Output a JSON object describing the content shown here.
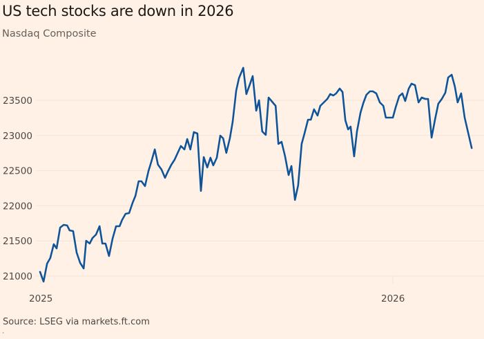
{
  "header": {
    "title": "US tech stocks are down in 2026",
    "subtitle": "Nasdaq Composite"
  },
  "footer": {
    "source": "Source: LSEG via markets.ft.com"
  },
  "colors": {
    "background": "#fff1e5",
    "line": "#0f5499",
    "gridline": "#f6e4d6",
    "text": "#4d4845"
  },
  "chart_data": {
    "type": "line",
    "title": "US tech stocks are down in 2026",
    "subtitle": "Nasdaq Composite",
    "xlabel": "",
    "ylabel": "",
    "x_unit": "decimal year",
    "xlim": [
      2025.0,
      2026.2
    ],
    "ylim": [
      20800,
      24100
    ],
    "yticks": [
      21000,
      21500,
      22000,
      22500,
      23000,
      23500
    ],
    "ytick_labels": [
      "21000",
      "21500",
      "22000",
      "22500",
      "23000",
      "23500"
    ],
    "xticks": [
      2025.0,
      2026.0
    ],
    "xtick_labels": [
      "2025",
      "2026"
    ],
    "grid": true,
    "legend": "none",
    "series": [
      {
        "name": "Nasdaq Composite",
        "points": [
          [
            2024.998,
            21059
          ],
          [
            2025.008,
            20921
          ],
          [
            2025.018,
            21177
          ],
          [
            2025.027,
            21256
          ],
          [
            2025.037,
            21453
          ],
          [
            2025.045,
            21394
          ],
          [
            2025.055,
            21689
          ],
          [
            2025.065,
            21728
          ],
          [
            2025.075,
            21719
          ],
          [
            2025.082,
            21650
          ],
          [
            2025.092,
            21640
          ],
          [
            2025.102,
            21335
          ],
          [
            2025.112,
            21187
          ],
          [
            2025.122,
            21108
          ],
          [
            2025.129,
            21502
          ],
          [
            2025.139,
            21463
          ],
          [
            2025.147,
            21541
          ],
          [
            2025.157,
            21591
          ],
          [
            2025.167,
            21709
          ],
          [
            2025.175,
            21463
          ],
          [
            2025.184,
            21463
          ],
          [
            2025.194,
            21285
          ],
          [
            2025.204,
            21531
          ],
          [
            2025.214,
            21709
          ],
          [
            2025.224,
            21709
          ],
          [
            2025.231,
            21797
          ],
          [
            2025.241,
            21886
          ],
          [
            2025.251,
            21896
          ],
          [
            2025.261,
            22043
          ],
          [
            2025.269,
            22142
          ],
          [
            2025.278,
            22348
          ],
          [
            2025.286,
            22348
          ],
          [
            2025.296,
            22280
          ],
          [
            2025.306,
            22496
          ],
          [
            2025.314,
            22624
          ],
          [
            2025.324,
            22801
          ],
          [
            2025.333,
            22585
          ],
          [
            2025.343,
            22516
          ],
          [
            2025.353,
            22398
          ],
          [
            2025.361,
            22486
          ],
          [
            2025.371,
            22585
          ],
          [
            2025.38,
            22654
          ],
          [
            2025.388,
            22742
          ],
          [
            2025.398,
            22850
          ],
          [
            2025.408,
            22801
          ],
          [
            2025.416,
            22949
          ],
          [
            2025.425,
            22801
          ],
          [
            2025.435,
            23047
          ],
          [
            2025.445,
            23028
          ],
          [
            2025.455,
            22211
          ],
          [
            2025.463,
            22693
          ],
          [
            2025.473,
            22545
          ],
          [
            2025.482,
            22683
          ],
          [
            2025.49,
            22575
          ],
          [
            2025.5,
            22683
          ],
          [
            2025.51,
            22998
          ],
          [
            2025.518,
            22959
          ],
          [
            2025.527,
            22752
          ],
          [
            2025.537,
            22959
          ],
          [
            2025.545,
            23195
          ],
          [
            2025.555,
            23638
          ],
          [
            2025.563,
            23815
          ],
          [
            2025.575,
            23963
          ],
          [
            2025.584,
            23589
          ],
          [
            2025.594,
            23726
          ],
          [
            2025.602,
            23844
          ],
          [
            2025.612,
            23352
          ],
          [
            2025.62,
            23500
          ],
          [
            2025.629,
            23057
          ],
          [
            2025.639,
            23008
          ],
          [
            2025.647,
            23539
          ],
          [
            2025.657,
            23480
          ],
          [
            2025.667,
            23421
          ],
          [
            2025.675,
            22880
          ],
          [
            2025.684,
            22909
          ],
          [
            2025.694,
            22703
          ],
          [
            2025.704,
            22437
          ],
          [
            2025.712,
            22565
          ],
          [
            2025.722,
            22083
          ],
          [
            2025.731,
            22289
          ],
          [
            2025.741,
            22880
          ],
          [
            2025.749,
            23028
          ],
          [
            2025.759,
            23224
          ],
          [
            2025.767,
            23224
          ],
          [
            2025.776,
            23372
          ],
          [
            2025.786,
            23283
          ],
          [
            2025.794,
            23421
          ],
          [
            2025.804,
            23470
          ],
          [
            2025.814,
            23520
          ],
          [
            2025.822,
            23589
          ],
          [
            2025.831,
            23569
          ],
          [
            2025.839,
            23598
          ],
          [
            2025.849,
            23667
          ],
          [
            2025.857,
            23618
          ],
          [
            2025.865,
            23215
          ],
          [
            2025.873,
            23087
          ],
          [
            2025.88,
            23126
          ],
          [
            2025.89,
            22703
          ],
          [
            2025.898,
            23057
          ],
          [
            2025.908,
            23323
          ],
          [
            2025.916,
            23461
          ],
          [
            2025.925,
            23579
          ],
          [
            2025.935,
            23628
          ],
          [
            2025.943,
            23628
          ],
          [
            2025.953,
            23598
          ],
          [
            2025.963,
            23470
          ],
          [
            2025.973,
            23421
          ],
          [
            2025.98,
            23254
          ],
          [
            2025.99,
            23254
          ],
          [
            2026.0,
            23254
          ],
          [
            2026.008,
            23402
          ],
          [
            2026.018,
            23559
          ],
          [
            2026.027,
            23598
          ],
          [
            2026.035,
            23490
          ],
          [
            2026.045,
            23667
          ],
          [
            2026.053,
            23736
          ],
          [
            2026.063,
            23716
          ],
          [
            2026.073,
            23470
          ],
          [
            2026.082,
            23539
          ],
          [
            2026.092,
            23520
          ],
          [
            2026.1,
            23520
          ],
          [
            2026.11,
            22969
          ],
          [
            2026.12,
            23234
          ],
          [
            2026.129,
            23451
          ],
          [
            2026.139,
            23520
          ],
          [
            2026.149,
            23608
          ],
          [
            2026.157,
            23825
          ],
          [
            2026.167,
            23864
          ],
          [
            2026.176,
            23696
          ],
          [
            2026.184,
            23470
          ],
          [
            2026.194,
            23598
          ],
          [
            2026.204,
            23254
          ],
          [
            2026.224,
            22821
          ]
        ]
      }
    ]
  }
}
